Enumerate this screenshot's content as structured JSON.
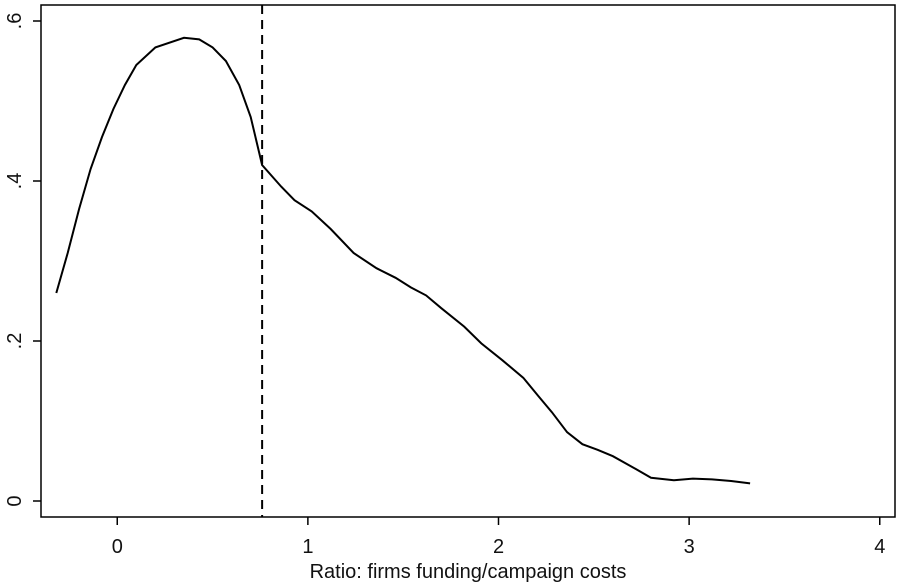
{
  "chart_data": {
    "type": "line",
    "title": "",
    "xlabel": "Ratio: firms funding/campaign costs",
    "ylabel": "",
    "xlim": [
      -0.4,
      4.08
    ],
    "ylim": [
      -0.02,
      0.62
    ],
    "xticks": [
      0,
      1,
      2,
      3,
      4
    ],
    "xtick_labels": [
      "0",
      "1",
      "2",
      "3",
      "4"
    ],
    "yticks": [
      0,
      0.2,
      0.4,
      0.6
    ],
    "ytick_labels": [
      "0",
      ".2",
      ".4",
      ".6"
    ],
    "grid": false,
    "legend": "none",
    "reference_line": {
      "axis": "x",
      "value": 0.76,
      "style": "dashed"
    },
    "series": [
      {
        "x": [
          -0.32,
          -0.26,
          -0.2,
          -0.14,
          -0.08,
          -0.02,
          0.04,
          0.1,
          0.2,
          0.35,
          0.43,
          0.5,
          0.57,
          0.64,
          0.7,
          0.76,
          0.86,
          0.93,
          1.02,
          1.12,
          1.24,
          1.36,
          1.46,
          1.54,
          1.62,
          1.7,
          1.82,
          1.91,
          2.02,
          2.13,
          2.21,
          2.28,
          2.36,
          2.44,
          2.52,
          2.6,
          2.72,
          2.8,
          2.92,
          3.02,
          3.12,
          3.22,
          3.32
        ],
        "y": [
          0.26,
          0.31,
          0.365,
          0.415,
          0.455,
          0.49,
          0.52,
          0.545,
          0.567,
          0.579,
          0.577,
          0.567,
          0.55,
          0.52,
          0.48,
          0.42,
          0.393,
          0.376,
          0.362,
          0.34,
          0.31,
          0.291,
          0.279,
          0.267,
          0.257,
          0.241,
          0.218,
          0.197,
          0.176,
          0.154,
          0.131,
          0.111,
          0.086,
          0.071,
          0.064,
          0.056,
          0.04,
          0.029,
          0.026,
          0.028,
          0.027,
          0.025,
          0.022
        ]
      }
    ]
  }
}
